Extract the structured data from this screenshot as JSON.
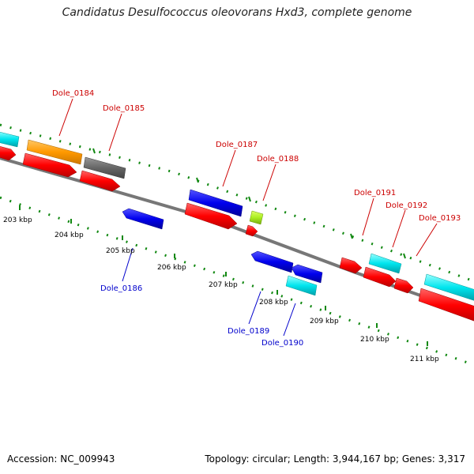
{
  "title": "Candidatus Desulfococcus oleovorans Hxd3, complete genome",
  "footer": {
    "accession": "Accession: NC_009943",
    "summary": "Topology: circular; Length: 3,944,167 bp; Genes: 3,317"
  },
  "colors": {
    "label_top": "#cc0000",
    "label_bottom": "#0000cc",
    "backbone": "#777777",
    "ticks": "#118811",
    "red": "#ff0000",
    "orange": "#ff9900",
    "gray": "#666666",
    "blue": "#0000ee",
    "cyan": "#00e5ee",
    "lime": "#aaee22"
  },
  "kbp_labels": [
    "203 kbp",
    "204 kbp",
    "205 kbp",
    "206 kbp",
    "207 kbp",
    "208 kbp",
    "209 kbp",
    "210 kbp",
    "211 kbp"
  ],
  "gene_labels_top": [
    "Dole_0184",
    "Dole_0185",
    "Dole_0187",
    "Dole_0188",
    "Dole_0191",
    "Dole_0192",
    "Dole_0193"
  ],
  "gene_labels_bottom": [
    "Dole_0186",
    "Dole_0189",
    "Dole_0190"
  ]
}
